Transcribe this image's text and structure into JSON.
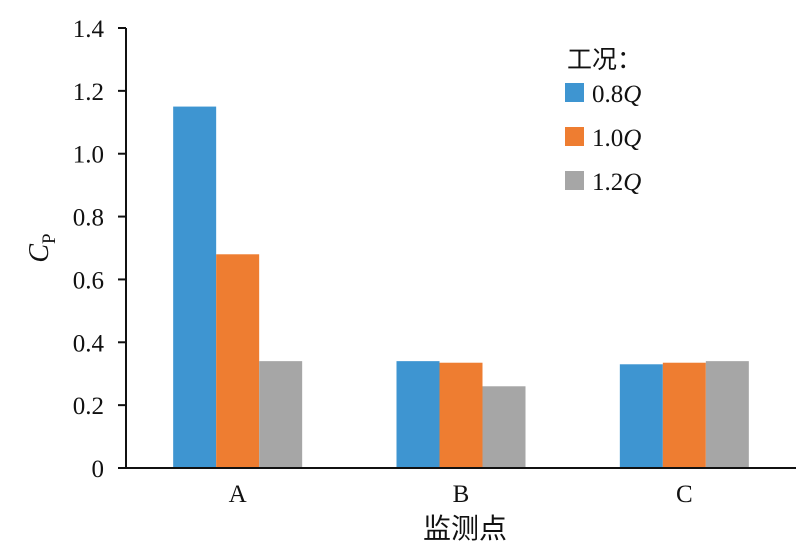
{
  "chart_data": {
    "type": "bar",
    "categories": [
      "A",
      "B",
      "C"
    ],
    "series": [
      {
        "name": "0.8Q",
        "values": [
          1.15,
          0.34,
          0.33
        ],
        "color": "#3e95d1"
      },
      {
        "name": "1.0Q",
        "values": [
          0.68,
          0.335,
          0.335
        ],
        "color": "#ee7d31"
      },
      {
        "name": "1.2Q",
        "values": [
          0.34,
          0.26,
          0.34
        ],
        "color": "#a6a6a6"
      }
    ],
    "title": "",
    "xlabel": "监测点",
    "ylabel": {
      "main": "C",
      "sub": "P"
    },
    "ylim": [
      0,
      1.4
    ],
    "yticks": [
      "0",
      "0.2",
      "0.4",
      "0.6",
      "0.8",
      "1.0",
      "1.2",
      "1.4"
    ],
    "grid": false,
    "legend": {
      "title": "工况：",
      "placement": "top-right"
    }
  }
}
